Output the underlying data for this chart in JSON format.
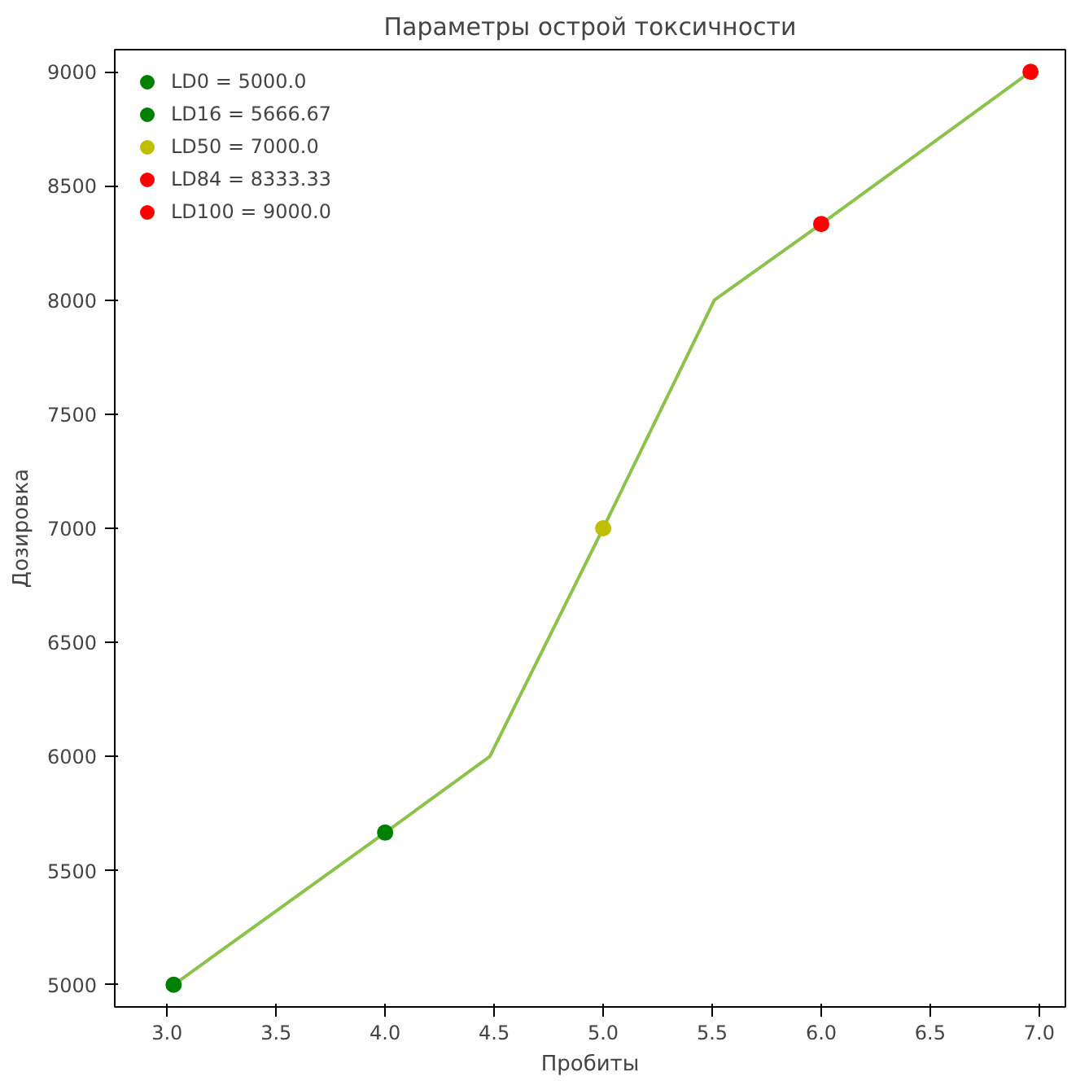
{
  "chart_data": {
    "type": "line",
    "title": "Параметры острой токсичности",
    "xlabel": "Пробиты",
    "ylabel": "Дозировка",
    "xlim": [
      2.76,
      7.12
    ],
    "ylim": [
      4903,
      9097
    ],
    "xticks": [
      {
        "value": 3,
        "label": "3.0"
      },
      3.5,
      {
        "value": 4,
        "label": "4.0"
      },
      4.5,
      {
        "value": 5,
        "label": "5.0"
      },
      5.5,
      {
        "value": 6,
        "label": "6.0"
      },
      6.5,
      {
        "value": 7,
        "label": "7.0"
      }
    ],
    "yticks": [
      5000,
      5500,
      6000,
      6500,
      7000,
      7500,
      8000,
      8500,
      9000
    ],
    "grid": false,
    "legend": "top left",
    "series": [
      {
        "color": "#8bc34a",
        "x": [
          3.03,
          4.0,
          4.48,
          5.0,
          5.51,
          6.0,
          6.96
        ],
        "values": [
          5000,
          5666.67,
          6000,
          7000,
          8000,
          8333.33,
          9000
        ]
      },
      {
        "type": "scatter",
        "name": "LD0 = 5000.0",
        "color": "#008000",
        "x": [
          3.03
        ],
        "values": [
          5000
        ]
      },
      {
        "type": "scatter",
        "name": "LD16 = 5666.67",
        "color": "#008000",
        "x": [
          4.0
        ],
        "values": [
          5666.67
        ]
      },
      {
        "type": "scatter",
        "name": "LD50 = 7000.0",
        "color": "#bfbf00",
        "x": [
          5.0
        ],
        "values": [
          7000
        ]
      },
      {
        "type": "scatter",
        "name": "LD84 = 8333.33",
        "color": "#ff0000",
        "x": [
          6.0
        ],
        "values": [
          8333.33
        ]
      },
      {
        "type": "scatter",
        "name": "LD100 = 9000.0",
        "color": "#ff0000",
        "x": [
          6.96
        ],
        "values": [
          9000
        ]
      }
    ]
  }
}
